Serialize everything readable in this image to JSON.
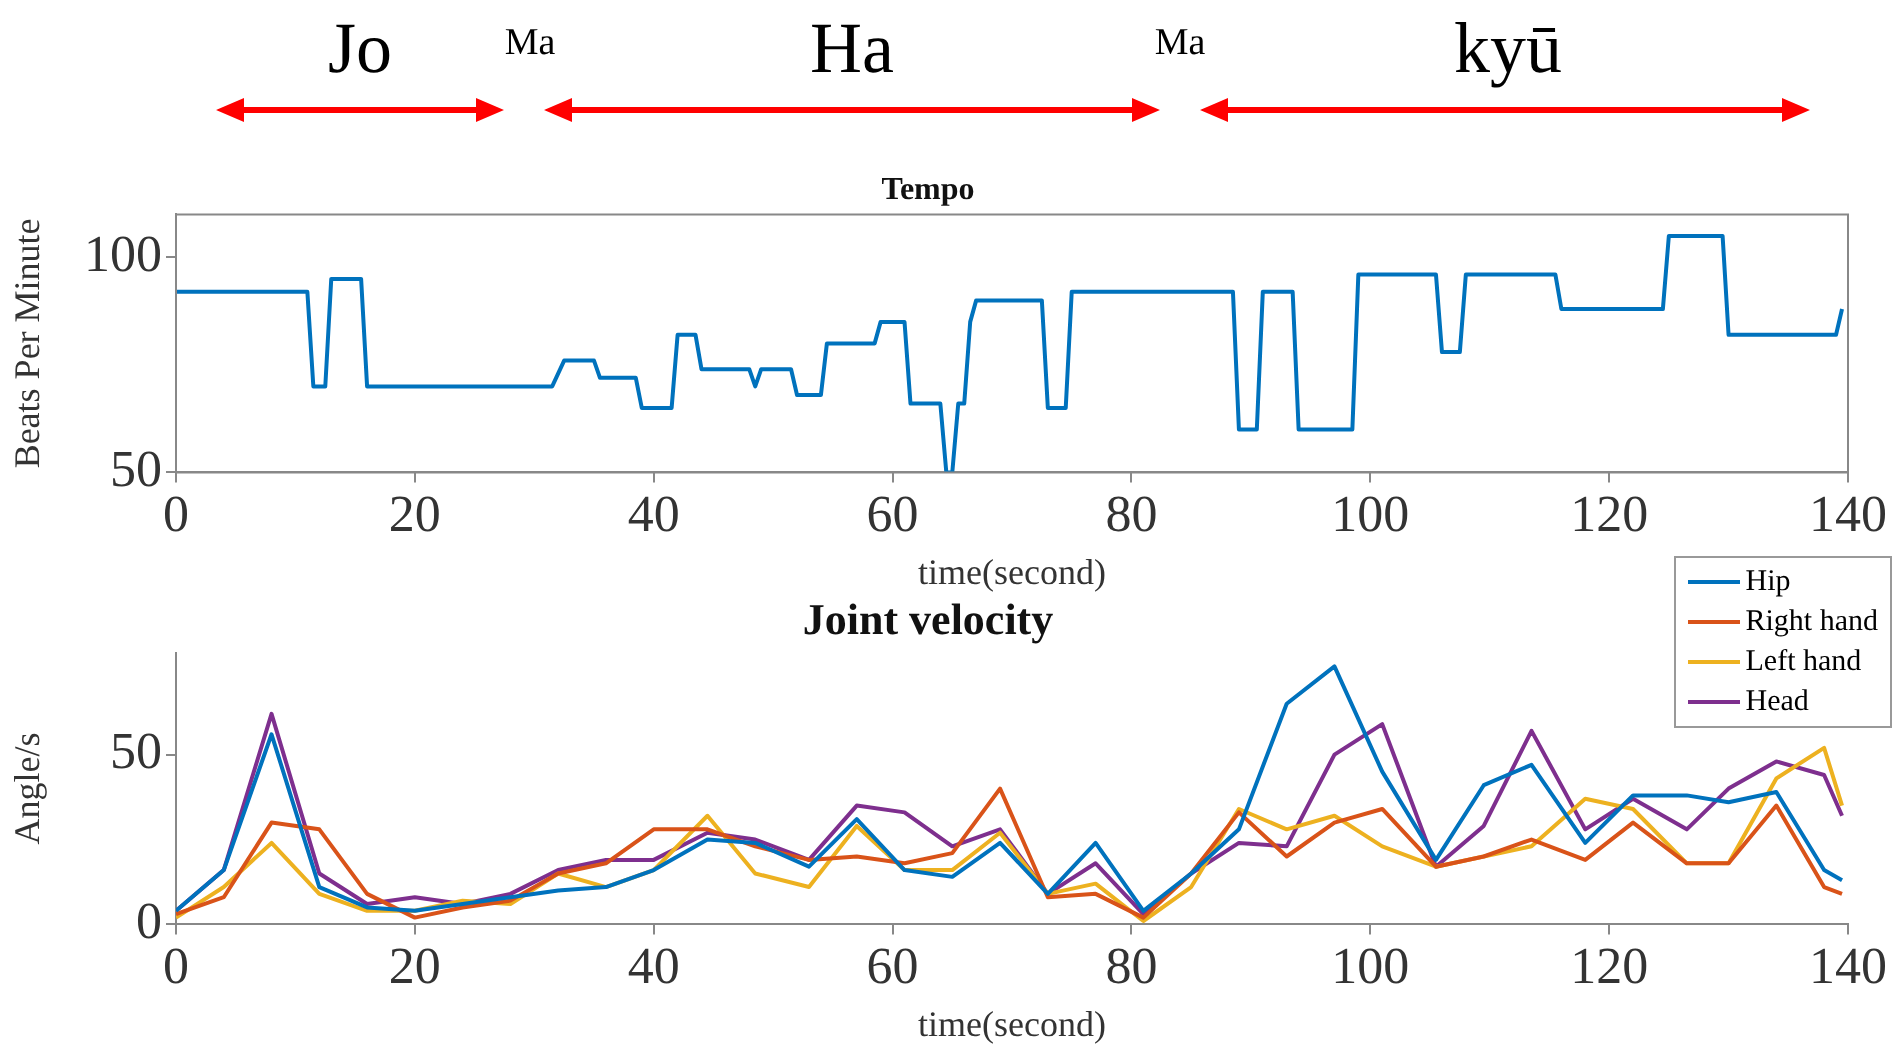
{
  "chart_data": [
    {
      "type": "line",
      "title": "Tempo",
      "xlabel": "time(second)",
      "ylabel": "Beats Per Minute",
      "color": "#0072bd",
      "x": [
        0,
        11,
        11.5,
        12.5,
        13,
        15.5,
        16,
        31.5,
        32.5,
        35,
        35.5,
        38.5,
        39,
        41.5,
        42,
        43.5,
        44,
        48,
        48.5,
        49,
        51.5,
        52,
        54,
        54.5,
        58.5,
        59,
        61,
        61.5,
        64,
        64.5,
        65,
        65.5,
        66,
        66.5,
        67,
        72.5,
        73,
        74.5,
        75,
        88.5,
        89,
        90.5,
        91,
        93.5,
        94,
        98.5,
        99,
        105.5,
        106,
        107.5,
        108,
        115.5,
        116,
        124.5,
        125,
        129.5,
        130,
        139,
        139.5
      ],
      "values": [
        92,
        92,
        70,
        70,
        95,
        95,
        70,
        70,
        76,
        76,
        72,
        72,
        65,
        65,
        82,
        82,
        74,
        74,
        70,
        74,
        74,
        68,
        68,
        80,
        80,
        85,
        85,
        66,
        66,
        50,
        50,
        66,
        66,
        85,
        90,
        90,
        65,
        65,
        92,
        92,
        60,
        60,
        92,
        92,
        60,
        60,
        96,
        96,
        78,
        78,
        96,
        96,
        88,
        88,
        105,
        105,
        82,
        82,
        88
      ],
      "xlim": [
        0,
        140
      ],
      "xticks": [
        0,
        20,
        40,
        60,
        80,
        100,
        120,
        140
      ],
      "ylim": [
        50,
        110
      ],
      "yticks": [
        50,
        100
      ],
      "grid": false,
      "legend": false,
      "annotations": [
        "Jo",
        "Ma",
        "Ha",
        "Ma",
        "kyū"
      ]
    },
    {
      "type": "line",
      "title": "Joint velocity",
      "xlabel": "time(second)",
      "ylabel": "Angle/s",
      "x": [
        0,
        4,
        8,
        12,
        16,
        20,
        24,
        28,
        32,
        36,
        40,
        44.5,
        48.5,
        53,
        57,
        61,
        65,
        69,
        73,
        77,
        81,
        85,
        89,
        93,
        97,
        101,
        105.5,
        109.5,
        113.5,
        118,
        122,
        126.5,
        130,
        134,
        138,
        139.5
      ],
      "series": [
        {
          "name": "Hip",
          "color": "#0072bd",
          "values": [
            4,
            16,
            56,
            11,
            5,
            4,
            6,
            8,
            10,
            11,
            16,
            25,
            24,
            17,
            31,
            16,
            14,
            24,
            9,
            24,
            4,
            15,
            28,
            65,
            76,
            45,
            19,
            41,
            47,
            24,
            38,
            38,
            36,
            39,
            16,
            13
          ]
        },
        {
          "name": "Right hand",
          "color": "#d95319",
          "values": [
            3,
            8,
            30,
            28,
            9,
            2,
            5,
            7,
            15,
            18,
            28,
            28,
            23,
            19,
            20,
            18,
            21,
            40,
            8,
            9,
            2,
            15,
            33,
            20,
            30,
            34,
            17,
            20,
            25,
            19,
            30,
            18,
            18,
            35,
            11,
            9
          ]
        },
        {
          "name": "Left hand",
          "color": "#edb120",
          "values": [
            2,
            11,
            24,
            9,
            4,
            4,
            7,
            6,
            15,
            11,
            16,
            32,
            15,
            11,
            29,
            16,
            16,
            27,
            9,
            12,
            1,
            11,
            34,
            28,
            32,
            23,
            17,
            20,
            23,
            37,
            34,
            18,
            18,
            43,
            52,
            35
          ]
        },
        {
          "name": "Head",
          "color": "#7e2f8e",
          "values": [
            4,
            16,
            62,
            15,
            6,
            8,
            6,
            9,
            16,
            19,
            19,
            27,
            25,
            19,
            35,
            33,
            23,
            28,
            9,
            18,
            3,
            15,
            24,
            23,
            50,
            59,
            17,
            29,
            57,
            28,
            37,
            28,
            40,
            48,
            44,
            32
          ]
        }
      ],
      "xlim": [
        0,
        140
      ],
      "xticks": [
        0,
        20,
        40,
        60,
        80,
        100,
        120,
        140
      ],
      "ylim": [
        0,
        80
      ],
      "yticks": [
        0,
        50
      ],
      "grid": false,
      "legend": "top right"
    }
  ]
}
